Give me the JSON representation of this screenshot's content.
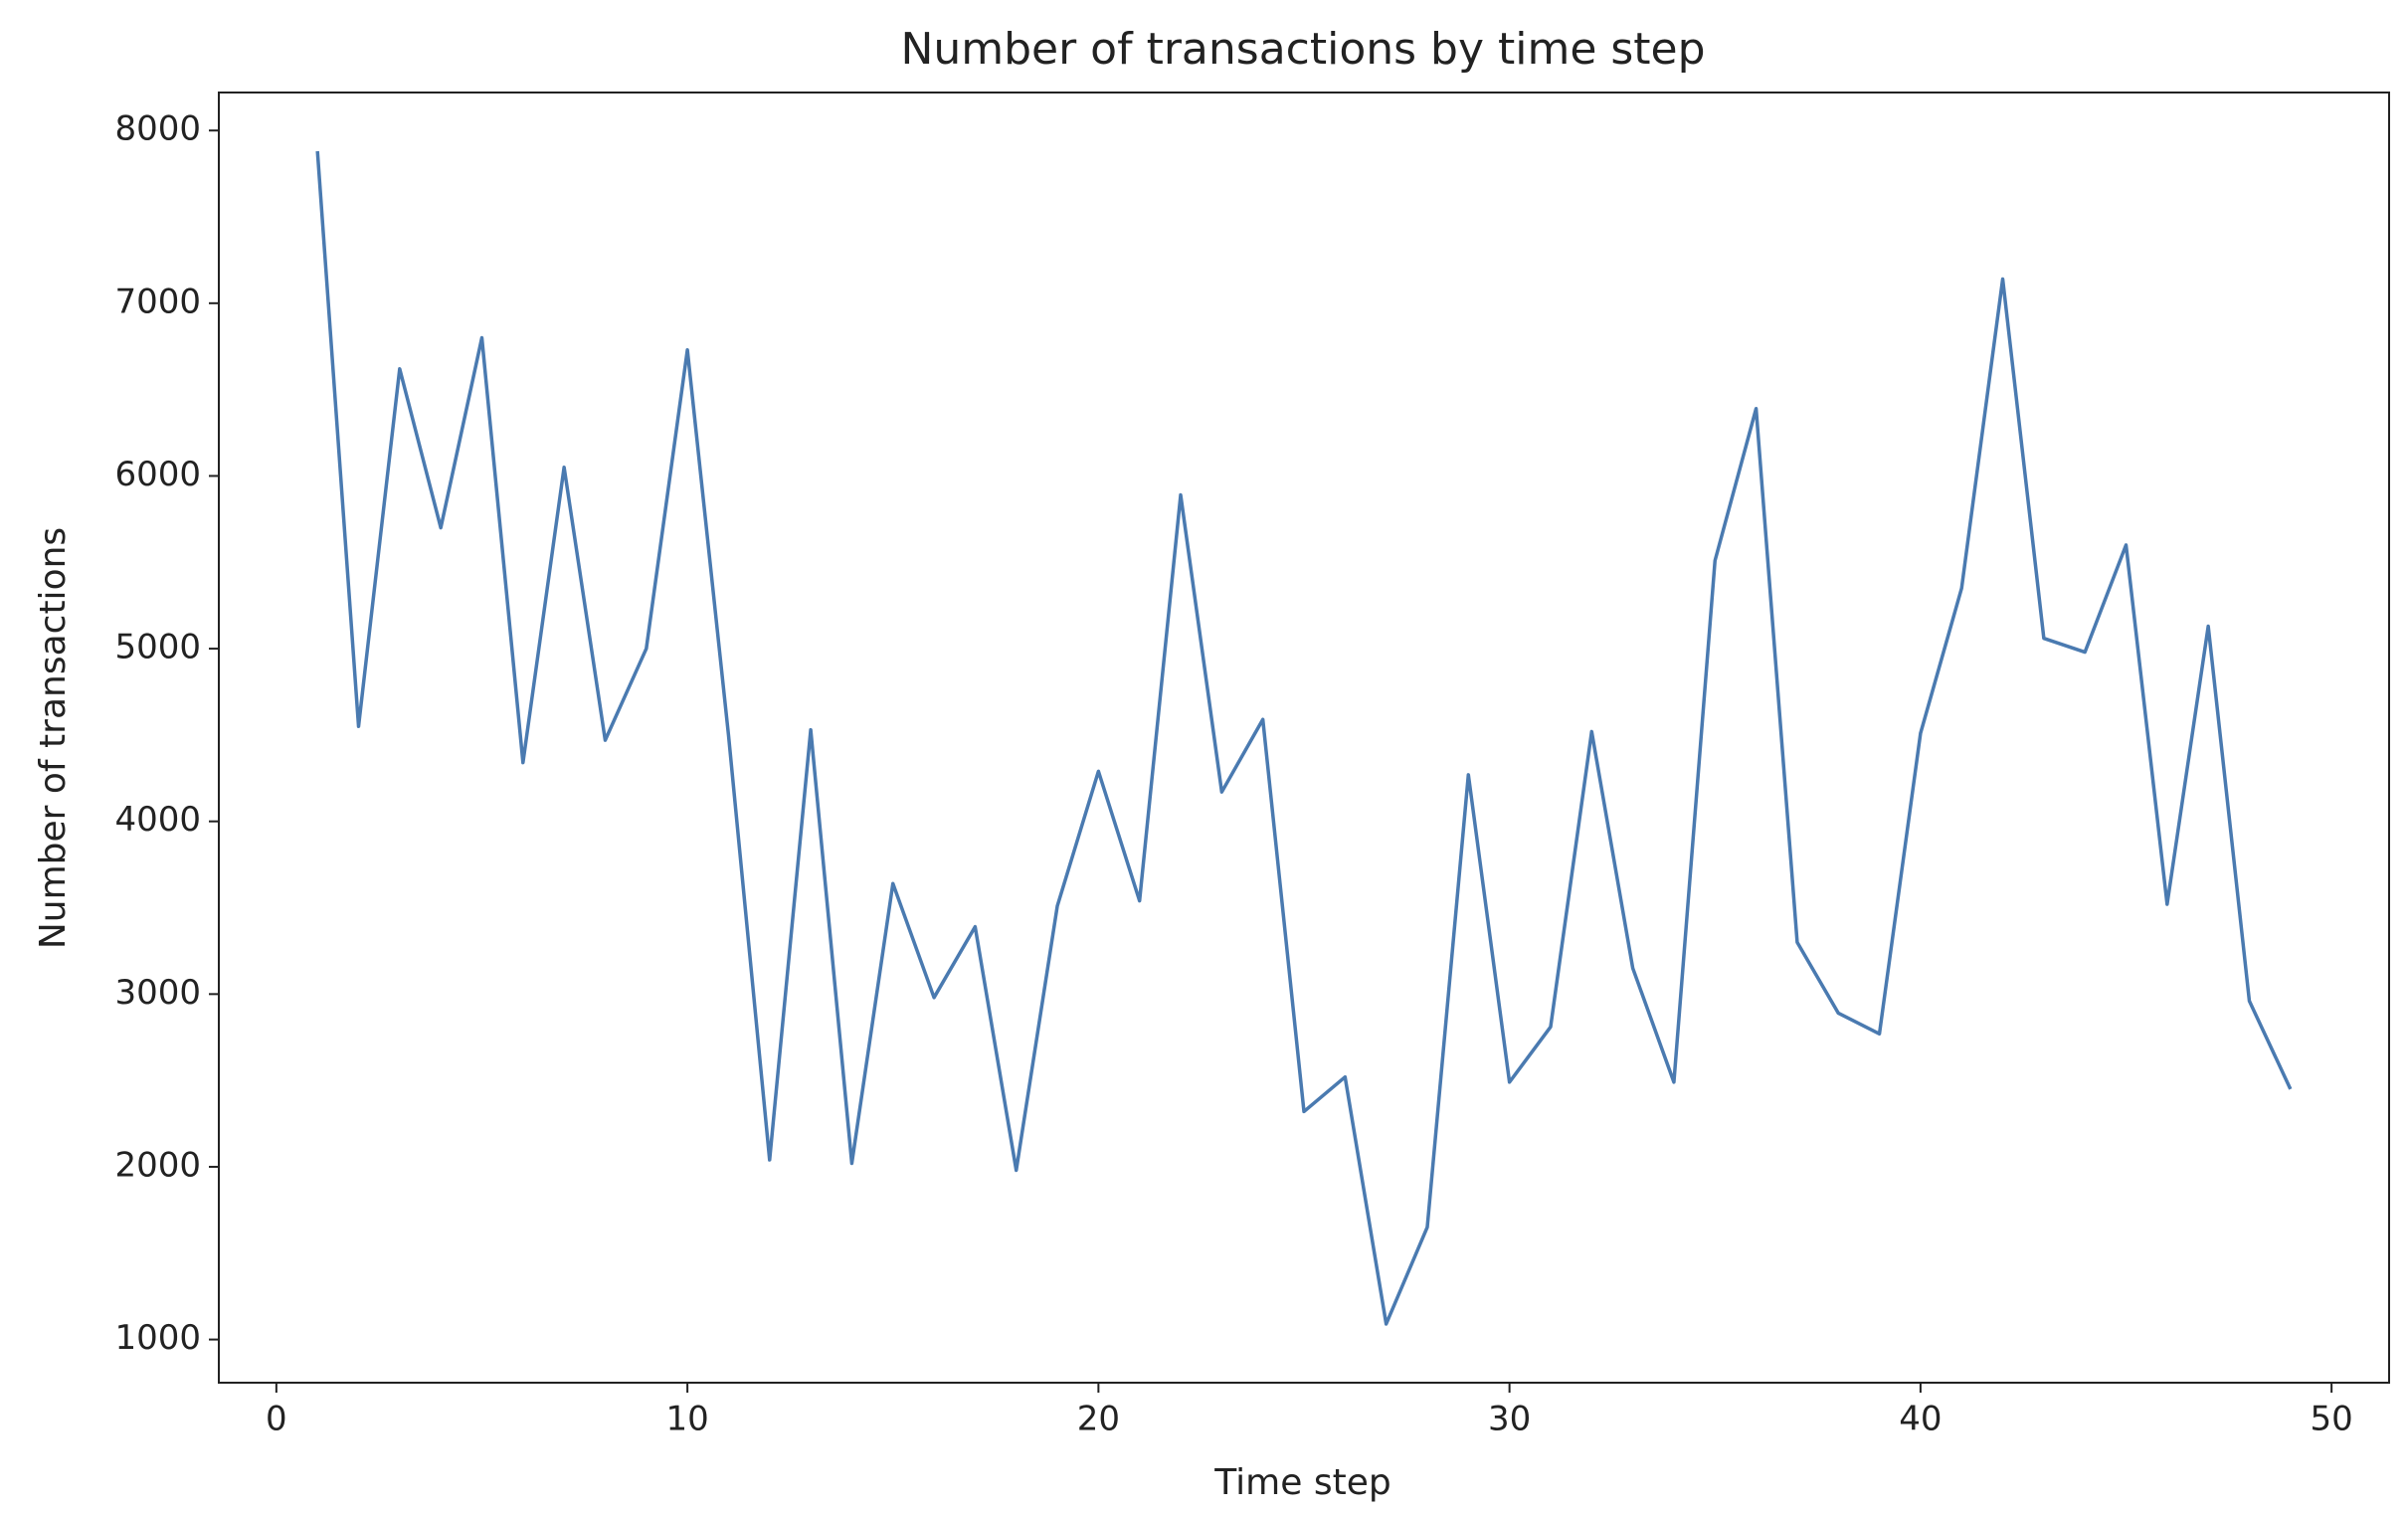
{
  "chart_data": {
    "type": "line",
    "title": "Number of transactions by time step",
    "x_label": "Time step",
    "y_label": "Number of transactions",
    "x": [
      1,
      2,
      3,
      4,
      5,
      6,
      7,
      8,
      9,
      10,
      11,
      12,
      13,
      14,
      15,
      16,
      17,
      18,
      19,
      20,
      21,
      22,
      23,
      24,
      25,
      26,
      27,
      28,
      29,
      30,
      31,
      32,
      33,
      34,
      35,
      36,
      37,
      38,
      39,
      40,
      41,
      42,
      43,
      44,
      45,
      46,
      47,
      48,
      49
    ],
    "series": [
      {
        "name": "Number of transactions",
        "color": "#4a7ab0",
        "values": [
          7880,
          4550,
          6620,
          5700,
          6800,
          4340,
          6050,
          4470,
          5000,
          6730,
          4500,
          2040,
          4530,
          2020,
          3640,
          2980,
          3390,
          1980,
          3510,
          4290,
          3540,
          5890,
          4170,
          4590,
          2320,
          2520,
          1090,
          1650,
          4270,
          2490,
          2810,
          4520,
          3150,
          2490,
          5510,
          6390,
          3300,
          2890,
          2770,
          4510,
          5350,
          7140,
          5060,
          4980,
          5600,
          3520,
          5130,
          2960,
          2450
        ]
      }
    ],
    "xlim": [
      -1.4,
      51.4
    ],
    "xticks": [
      0,
      10,
      20,
      30,
      40,
      50
    ],
    "ylim": [
      750,
      8220
    ],
    "yticks": [
      1000,
      2000,
      3000,
      4000,
      5000,
      6000,
      7000,
      8000
    ]
  }
}
